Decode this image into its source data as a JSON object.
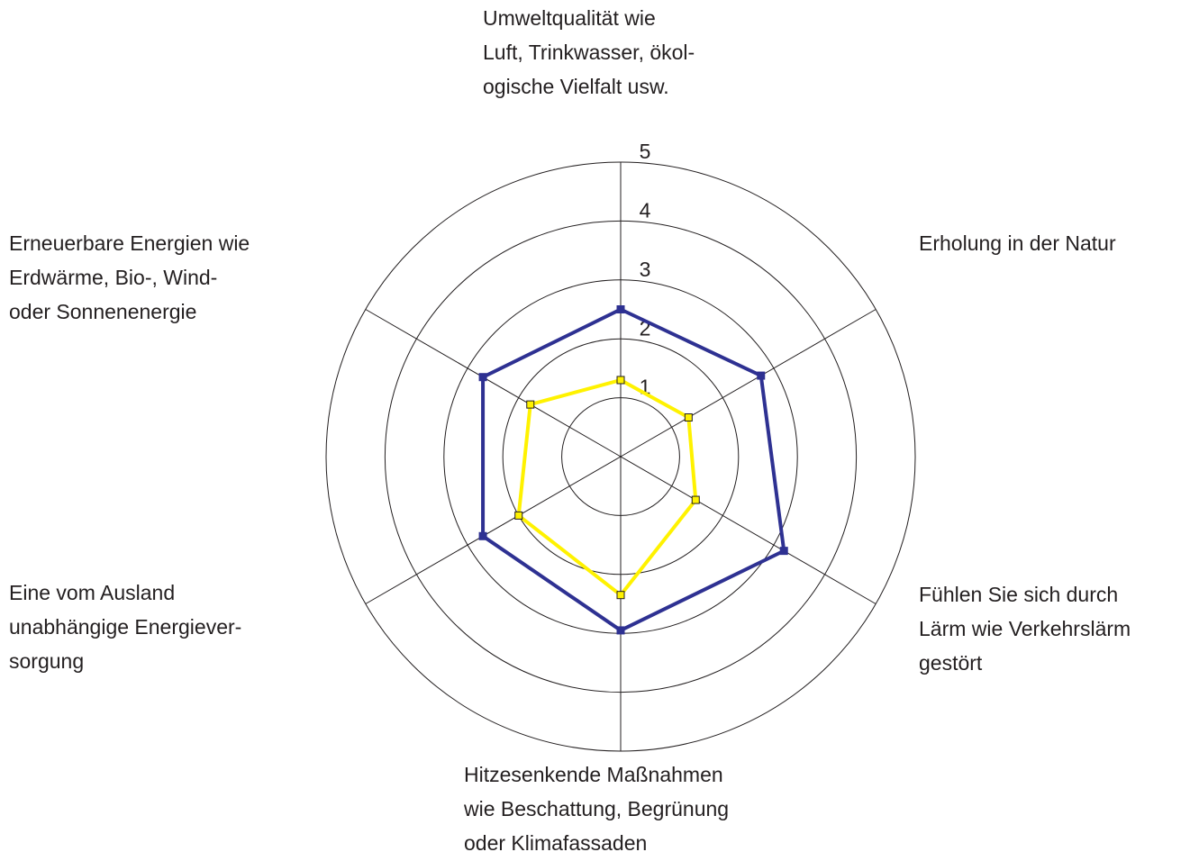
{
  "chart_data": {
    "type": "radar",
    "categories": [
      [
        "Umweltqualität wie",
        "Luft, Trinkwasser, ökol-",
        "ogische Vielfalt usw."
      ],
      [
        "Erholung in der Natur"
      ],
      [
        "Fühlen Sie sich durch",
        "Lärm wie Verkehrslärm",
        "gestört"
      ],
      [
        "Hitzesenkende Maßnahmen",
        "wie Beschattung, Begrünung",
        "oder Klimafassaden"
      ],
      [
        "Eine vom Ausland",
        "unabhängige Energiever-",
        "sorgung"
      ],
      [
        "Erneuerbare Energien wie",
        "Erdwärme, Bio-, Wind-",
        "oder Sonnenenergie"
      ]
    ],
    "series": [
      {
        "color": "#2e3192",
        "values": [
          2.5,
          2.75,
          3.2,
          2.95,
          2.7,
          2.7
        ]
      },
      {
        "color": "#fff200",
        "values": [
          1.3,
          1.33,
          1.47,
          2.35,
          2.0,
          1.77
        ]
      }
    ],
    "ylim": [
      0,
      5
    ],
    "yticks": [
      1,
      2,
      3,
      4,
      5
    ],
    "grid": true
  }
}
